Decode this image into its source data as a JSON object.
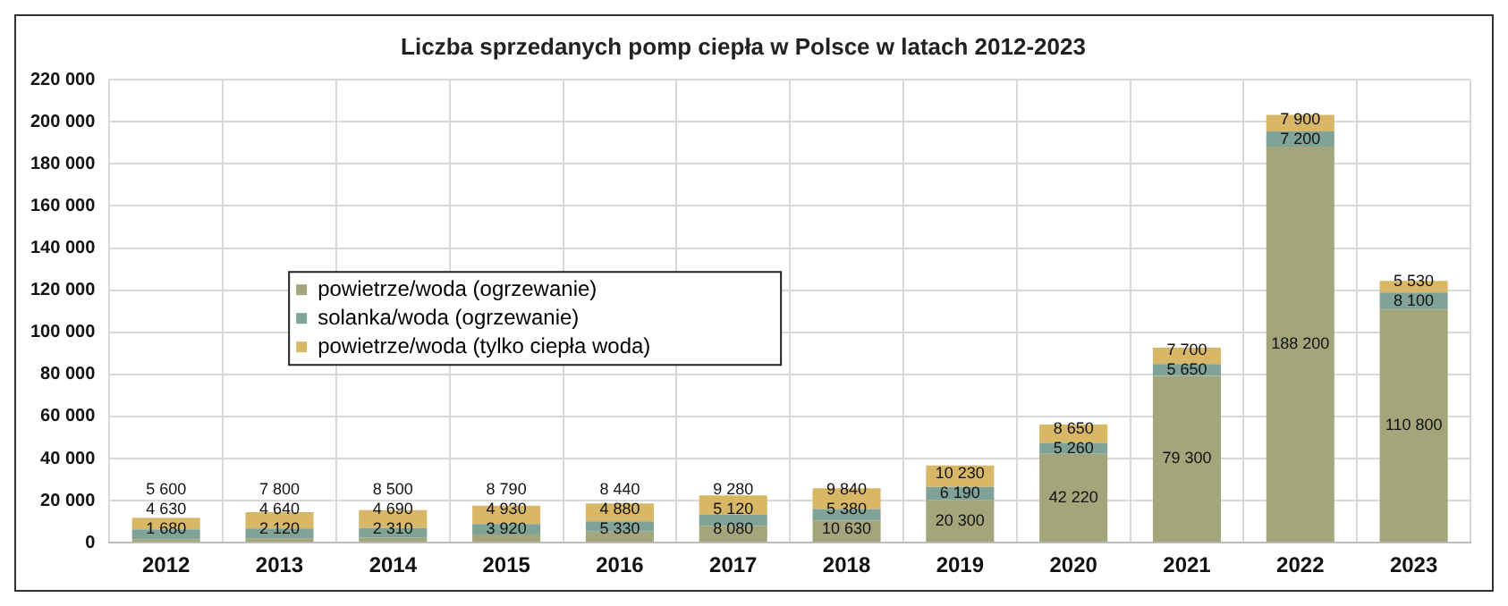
{
  "chart_data": {
    "type": "bar",
    "title": "Liczba sprzedanych pomp ciepła w Polsce w latach 2012-2023",
    "categories": [
      "2012",
      "2013",
      "2014",
      "2015",
      "2016",
      "2017",
      "2018",
      "2019",
      "2020",
      "2021",
      "2022",
      "2023"
    ],
    "stacked": true,
    "grid": true,
    "legend": "left",
    "ylim": [
      0,
      220000
    ],
    "yticks": [
      {
        "value": 0,
        "label": "0"
      },
      {
        "value": 20000,
        "label": "20 000"
      },
      {
        "value": 40000,
        "label": "40 000"
      },
      {
        "value": 60000,
        "label": "60 000"
      },
      {
        "value": 80000,
        "label": "80 000"
      },
      {
        "value": 100000,
        "label": "100 000"
      },
      {
        "value": 120000,
        "label": "120 000"
      },
      {
        "value": 140000,
        "label": "140 000"
      },
      {
        "value": 160000,
        "label": "160 000"
      },
      {
        "value": 180000,
        "label": "180 000"
      },
      {
        "value": 200000,
        "label": "200 000"
      },
      {
        "value": 220000,
        "label": "220 000"
      }
    ],
    "series": [
      {
        "name": "powietrze/woda (ogrzewanie)",
        "color": "#a3a67a",
        "values": [
          1680,
          2120,
          2310,
          3920,
          5330,
          8080,
          10630,
          20300,
          42220,
          79300,
          188200,
          110800
        ],
        "value_labels": [
          "1 680",
          "2 120",
          "2 310",
          "3 920",
          "5 330",
          "8 080",
          "10 630",
          "20 300",
          "42 220",
          "79 300",
          "188 200",
          "110 800"
        ]
      },
      {
        "name": "solanka/woda (ogrzewanie)",
        "color": "#7fa398",
        "values": [
          4630,
          4640,
          4690,
          4930,
          4880,
          5120,
          5380,
          6190,
          5260,
          5650,
          7200,
          8100
        ],
        "value_labels": [
          "4 630",
          "4 640",
          "4 690",
          "4 930",
          "4 880",
          "5 120",
          "5 380",
          "6 190",
          "5 260",
          "5 650",
          "7 200",
          "8 100"
        ]
      },
      {
        "name": "powietrze/woda (tylko ciepła woda)",
        "color": "#d8b767",
        "values": [
          5600,
          7800,
          8500,
          8790,
          8440,
          9280,
          9840,
          10230,
          8650,
          7700,
          7900,
          5530
        ],
        "value_labels": [
          "5 600",
          "7 800",
          "8 500",
          "8 790",
          "8 440",
          "9 280",
          "9 840",
          "10 230",
          "8 650",
          "7 700",
          "7 900",
          "5 530"
        ]
      }
    ]
  }
}
